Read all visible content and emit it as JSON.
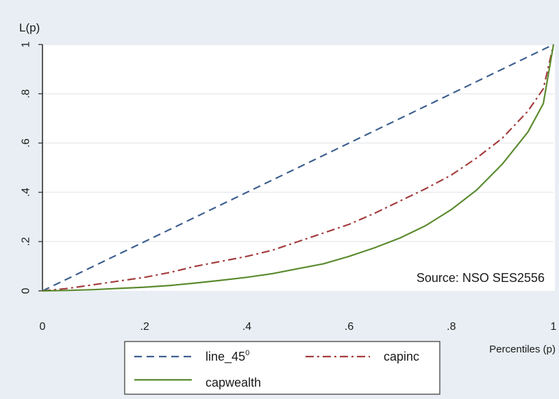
{
  "chart_data": {
    "type": "line",
    "ylabel": "L(p)",
    "xlabel": "Percentiles (p)",
    "xlim": [
      0,
      1
    ],
    "ylim": [
      0,
      1
    ],
    "x_ticks": [
      {
        "value": 0,
        "label": "0"
      },
      {
        "value": 0.2,
        "label": ".2"
      },
      {
        "value": 0.4,
        "label": ".4"
      },
      {
        "value": 0.6,
        "label": ".6"
      },
      {
        "value": 0.8,
        "label": ".8"
      },
      {
        "value": 1,
        "label": "1"
      }
    ],
    "y_ticks": [
      {
        "value": 0,
        "label": "0"
      },
      {
        "value": 0.2,
        "label": ".2"
      },
      {
        "value": 0.4,
        "label": ".4"
      },
      {
        "value": 0.6,
        "label": ".6"
      },
      {
        "value": 0.8,
        "label": ".8"
      },
      {
        "value": 1,
        "label": "1"
      }
    ],
    "grid": "horizontal",
    "legend_position": "bottom",
    "annotation": "Source: NSO SES2556",
    "x": [
      0,
      0.05,
      0.1,
      0.15,
      0.2,
      0.25,
      0.3,
      0.35,
      0.4,
      0.45,
      0.5,
      0.55,
      0.6,
      0.65,
      0.7,
      0.75,
      0.8,
      0.85,
      0.9,
      0.95,
      0.98,
      1
    ],
    "series": [
      {
        "name": "line_45",
        "name_sup": "0",
        "color": "#3d5f8f",
        "dash": "dashed",
        "values": [
          0,
          0.05,
          0.1,
          0.15,
          0.2,
          0.25,
          0.3,
          0.35,
          0.4,
          0.45,
          0.5,
          0.55,
          0.6,
          0.65,
          0.7,
          0.75,
          0.8,
          0.85,
          0.9,
          0.95,
          0.98,
          1
        ]
      },
      {
        "name": "capinc",
        "color": "#a33d3d",
        "dash": "dashdot",
        "values": [
          0,
          0.01,
          0.025,
          0.04,
          0.055,
          0.075,
          0.1,
          0.12,
          0.14,
          0.165,
          0.2,
          0.235,
          0.27,
          0.315,
          0.365,
          0.415,
          0.47,
          0.54,
          0.62,
          0.73,
          0.82,
          1
        ]
      },
      {
        "name": "capwealth",
        "color": "#5a8a2e",
        "dash": "solid",
        "values": [
          0,
          0.002,
          0.005,
          0.01,
          0.015,
          0.022,
          0.032,
          0.043,
          0.055,
          0.07,
          0.09,
          0.11,
          0.14,
          0.175,
          0.215,
          0.265,
          0.33,
          0.41,
          0.515,
          0.645,
          0.76,
          1
        ]
      }
    ]
  }
}
